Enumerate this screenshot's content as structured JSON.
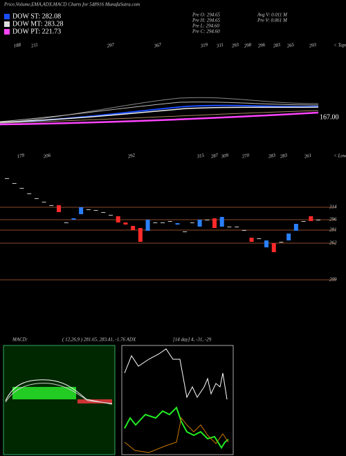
{
  "header": {
    "title": "Price,Volume,EMA,ADX,MACD Charts for 548916  MunafaSutra.com"
  },
  "legend": [
    {
      "label": "DOW ST: 282.08",
      "color": "#1a4dff"
    },
    {
      "label": "DOW MT: 283.28",
      "color": "#dddddd"
    },
    {
      "label": "DOW PT: 221.73",
      "color": "#ff44ff"
    }
  ],
  "info": {
    "left": [
      "Pre   O: 294.65",
      "Pre   H: 294.65",
      "Pre   L: 294.60",
      "Pre   C: 294.60"
    ],
    "right": [
      "Avg V: 0.011 M",
      "Pre   V: 0.061 M"
    ]
  },
  "tops": {
    "values": [
      "188",
      "211",
      "297",
      "367",
      "319",
      "311",
      "293",
      "298",
      "296",
      "283",
      "265",
      "293"
    ],
    "label": "< Tops"
  },
  "price_tag": "167.00",
  "lows": {
    "values": [
      "179",
      "206",
      "292",
      "315",
      "287",
      "309",
      "270",
      "283",
      "283",
      "261"
    ],
    "label": "< Lows"
  },
  "chart_data": {
    "type": "candlestick",
    "levels": [
      314,
      296,
      281,
      262,
      209
    ],
    "up_color": "#2a7fff",
    "down_color": "#ff2a2a",
    "flat_color": "#cccccc",
    "level_color": "#8b4a2a",
    "candles": [
      {
        "o": 356,
        "c": 356
      },
      {
        "o": 349,
        "c": 349
      },
      {
        "o": 342,
        "c": 342
      },
      {
        "o": 334,
        "c": 334
      },
      {
        "o": 327,
        "c": 327
      },
      {
        "o": 322,
        "c": 322
      },
      {
        "o": 317,
        "c": 317
      },
      {
        "o": 317,
        "c": 307
      },
      {
        "o": 292,
        "c": 292
      },
      {
        "o": 296,
        "c": 298
      },
      {
        "o": 304,
        "c": 314
      },
      {
        "o": 311,
        "c": 311
      },
      {
        "o": 310,
        "c": 310
      },
      {
        "o": 307,
        "c": 307
      },
      {
        "o": 303,
        "c": 303
      },
      {
        "o": 301,
        "c": 292
      },
      {
        "o": 292,
        "c": 289
      },
      {
        "o": 287,
        "c": 281
      },
      {
        "o": 284,
        "c": 264
      },
      {
        "o": 280,
        "c": 296
      },
      {
        "o": 292,
        "c": 292
      },
      {
        "o": 292,
        "c": 292
      },
      {
        "o": 294,
        "c": 294
      },
      {
        "o": 289,
        "c": 291
      },
      {
        "o": 279,
        "c": 279
      },
      {
        "o": 292,
        "c": 292
      },
      {
        "o": 286,
        "c": 296
      },
      {
        "o": 296,
        "c": 296
      },
      {
        "o": 298,
        "c": 284
      },
      {
        "o": 286,
        "c": 300
      },
      {
        "o": 286,
        "c": 286
      },
      {
        "o": 286,
        "c": 286
      },
      {
        "o": 281,
        "c": 281
      },
      {
        "o": 270,
        "c": 264
      },
      {
        "o": 269,
        "c": 269
      },
      {
        "o": 256,
        "c": 266
      },
      {
        "o": 262,
        "c": 249
      },
      {
        "o": 264,
        "c": 264
      },
      {
        "o": 266,
        "c": 276
      },
      {
        "o": 280,
        "c": 290
      },
      {
        "o": 294,
        "c": 294
      },
      {
        "o": 301,
        "c": 294
      },
      {
        "o": 296,
        "c": 296
      }
    ]
  },
  "macd": {
    "label": "MACD:",
    "text": "( 12,26,9 ) 281.65, 283.41, -1.76 ADX"
  },
  "adx": {
    "text": "[14 day] 4, -31, -29"
  }
}
